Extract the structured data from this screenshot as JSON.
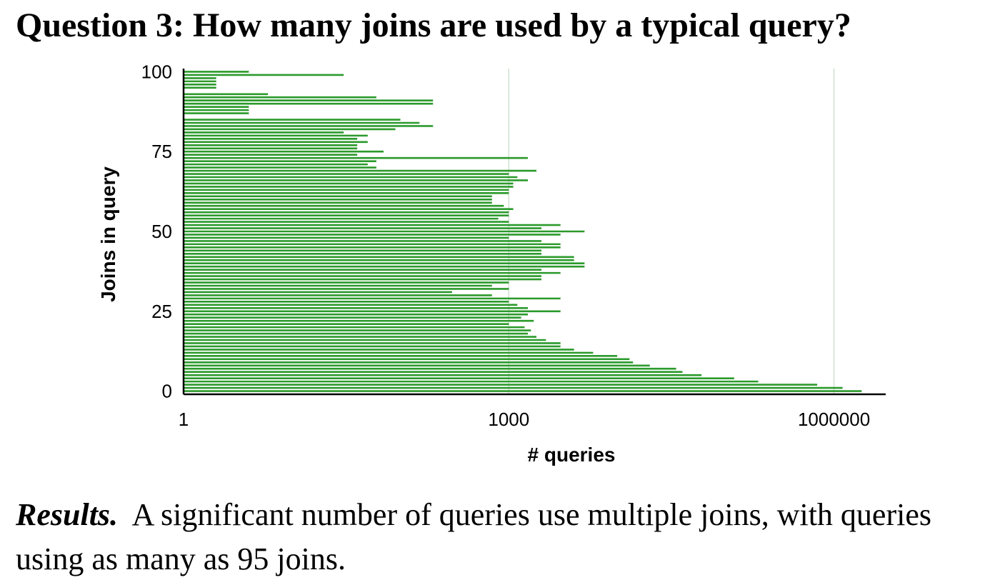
{
  "heading": "Question 3: How many joins are used by a typical query?",
  "caption": {
    "lead": "Results.",
    "text": "A significant number of queries use multiple joins, with queries using as many as 95 joins."
  },
  "chart_data": {
    "type": "bar",
    "orientation": "horizontal",
    "xlabel": "# queries",
    "ylabel": "Joins in query",
    "x_scale": "log",
    "xlim": [
      1,
      3000000
    ],
    "ylim": [
      -1,
      101
    ],
    "x_ticks": [
      1,
      1000,
      1000000
    ],
    "x_tick_labels": [
      "1",
      "1000",
      "1000000"
    ],
    "y_ticks": [
      0,
      25,
      50,
      75,
      100
    ],
    "y_tick_labels": [
      "0",
      "25",
      "50",
      "75",
      "100"
    ],
    "grid": "vertical",
    "bar_color": "#2b9a2b",
    "grid_color": "#cfe0cf",
    "categories": [
      0,
      1,
      2,
      3,
      4,
      5,
      6,
      7,
      8,
      9,
      10,
      11,
      12,
      13,
      14,
      15,
      16,
      17,
      18,
      19,
      20,
      21,
      22,
      23,
      24,
      25,
      26,
      27,
      28,
      29,
      30,
      31,
      32,
      33,
      34,
      35,
      36,
      37,
      38,
      39,
      40,
      41,
      42,
      43,
      44,
      45,
      46,
      47,
      48,
      49,
      50,
      51,
      52,
      53,
      54,
      55,
      56,
      57,
      58,
      59,
      60,
      61,
      62,
      63,
      64,
      65,
      66,
      67,
      68,
      69,
      70,
      71,
      72,
      73,
      74,
      75,
      76,
      77,
      78,
      79,
      80,
      81,
      82,
      83,
      84,
      85,
      86,
      87,
      88,
      89,
      90,
      91,
      92,
      93,
      94,
      95,
      96,
      97,
      98,
      99,
      100
    ],
    "values": [
      1800000,
      1200000,
      700000,
      200000,
      120000,
      60000,
      40000,
      35000,
      20000,
      14000,
      13000,
      10000,
      6000,
      4000,
      3000,
      3000,
      2200,
      1800,
      1500,
      1600,
      1400,
      1000,
      1700,
      1300,
      1500,
      3000,
      1500,
      1200,
      1000,
      3000,
      700,
      300,
      1000,
      700,
      1000,
      2000,
      2000,
      3000,
      2000,
      5000,
      5000,
      4000,
      4000,
      2000,
      2000,
      3000,
      3000,
      2000,
      1000,
      3000,
      5000,
      2000,
      3000,
      1000,
      800,
      1000,
      1000,
      1100,
      900,
      700,
      700,
      700,
      1000,
      1000,
      1100,
      1100,
      1500,
      1200,
      1000,
      1800,
      60,
      50,
      60,
      1500,
      40,
      70,
      40,
      40,
      50,
      40,
      50,
      30,
      90,
      200,
      150,
      100,
      1,
      4,
      1,
      4,
      200,
      200,
      0,
      0,
      0,
      0,
      0,
      0,
      0,
      0,
      0
    ],
    "vlines": [
      {
        "x": 2,
        "from": 82,
        "to": 100
      },
      {
        "x": 8,
        "from": 82,
        "to": 100
      },
      {
        "x": 2,
        "from": 96,
        "to": 100
      },
      {
        "x": 2,
        "from": 80,
        "to": 82
      }
    ],
    "extra_bars": [
      {
        "y": 100,
        "value": 4
      },
      {
        "y": 99,
        "value": 30
      },
      {
        "y": 98,
        "value": 2
      },
      {
        "y": 97,
        "value": 2
      },
      {
        "y": 96,
        "value": 2
      },
      {
        "y": 95,
        "value": 2
      },
      {
        "y": 93,
        "value": 6
      },
      {
        "y": 92,
        "value": 60
      },
      {
        "y": 91,
        "value": 60
      },
      {
        "y": 90,
        "value": 4
      },
      {
        "y": 88,
        "value": 4
      }
    ]
  }
}
